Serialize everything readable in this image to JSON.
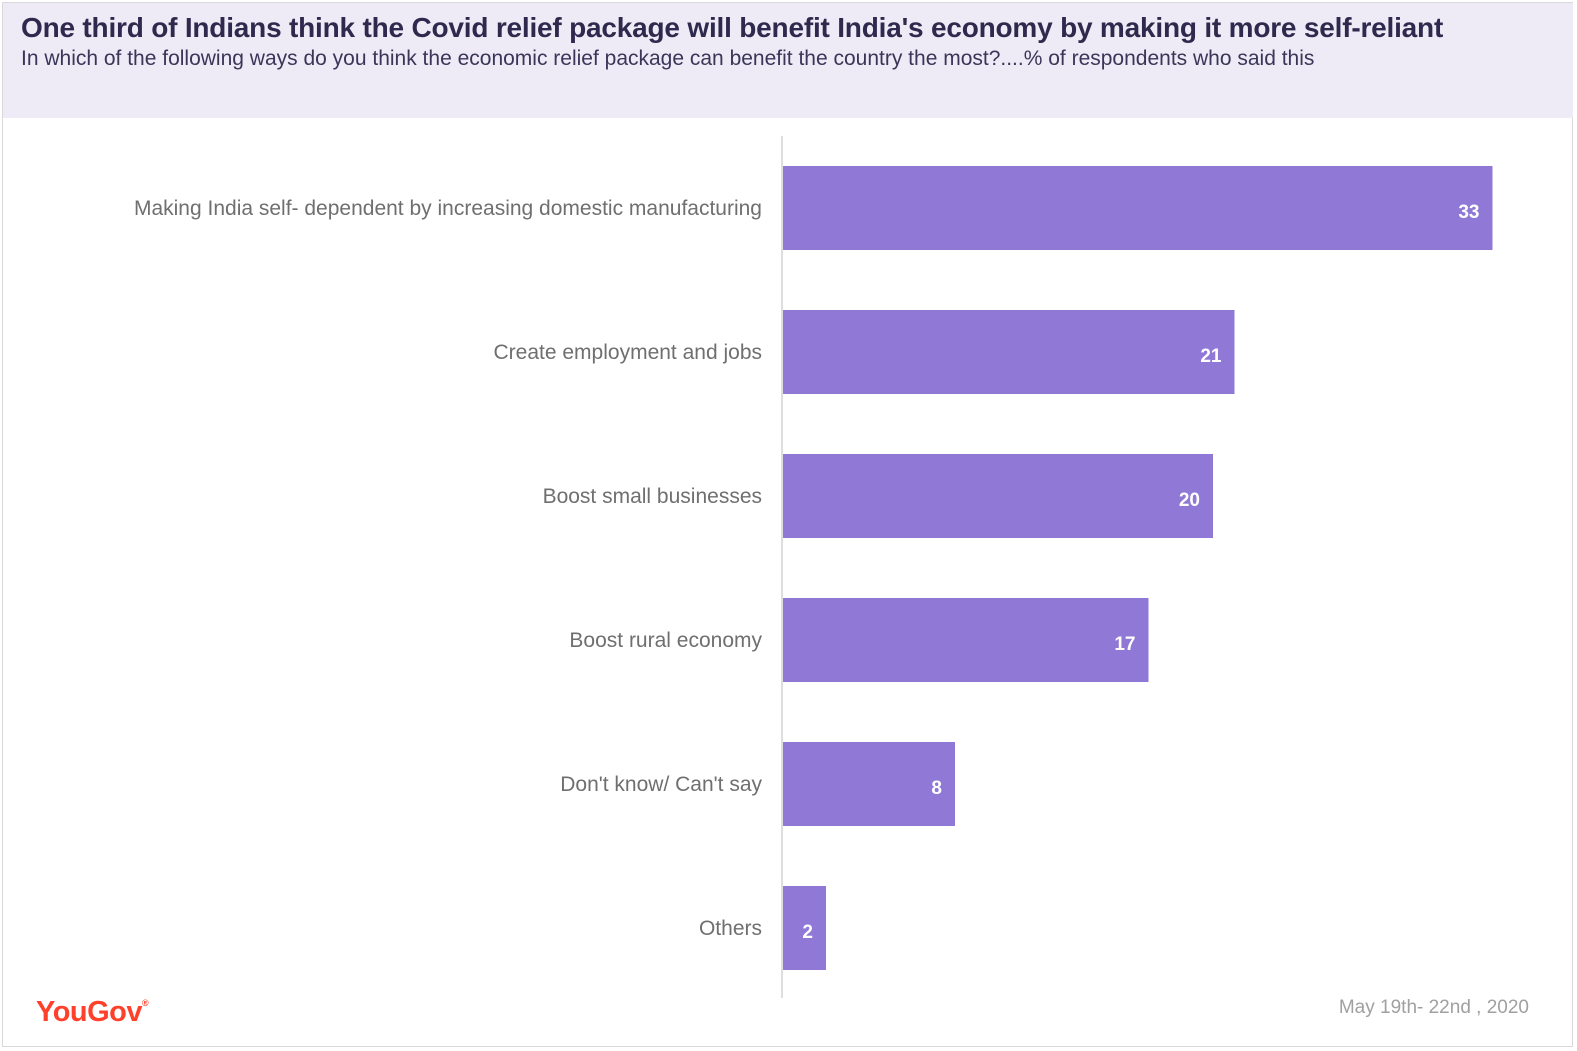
{
  "header": {
    "title": "One third of Indians think the Covid relief package will benefit India's economy by making it more self-reliant",
    "subtitle": "In which of the following ways do you think the economic relief package can benefit the country the most?....% of respondents who said this"
  },
  "footer": {
    "brand": "YouGov",
    "date": "May 19th- 22nd , 2020"
  },
  "colors": {
    "bar": "#9079d6",
    "header_bg": "#eeebf7",
    "brand": "#ff412c"
  },
  "chart_data": {
    "type": "bar",
    "orientation": "horizontal",
    "categories": [
      "Making India self- dependent by increasing domestic manufacturing",
      "Create employment and jobs",
      "Boost small businesses",
      "Boost rural economy",
      "Don't know/ Can't say",
      "Others"
    ],
    "values": [
      33,
      21,
      20,
      17,
      8,
      2
    ],
    "unit": "%",
    "xlim": [
      0,
      35
    ],
    "data_labels": true,
    "grid": false,
    "legend": "none"
  }
}
